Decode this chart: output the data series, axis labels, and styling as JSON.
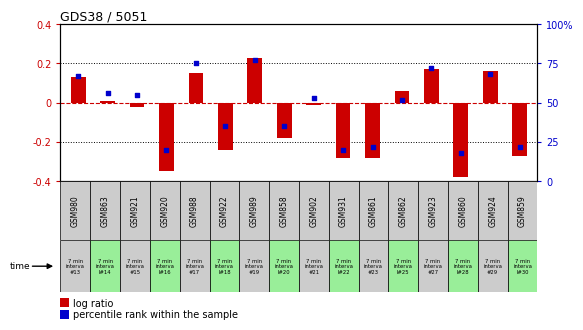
{
  "title": "GDS38 / 5051",
  "samples": [
    "GSM980",
    "GSM863",
    "GSM921",
    "GSM920",
    "GSM988",
    "GSM922",
    "GSM989",
    "GSM858",
    "GSM902",
    "GSM931",
    "GSM861",
    "GSM862",
    "GSM923",
    "GSM860",
    "GSM924",
    "GSM859"
  ],
  "time_labels": [
    "7 min\ninterva\n#13",
    "7 min\ninterva\nl#14",
    "7 min\ninterva\n#15",
    "7 min\ninterva\nl#16",
    "7 min\ninterva\n#17",
    "7 min\ninterva\nl#18",
    "7 min\ninterva\n#19",
    "7 min\ninterva\nl#20",
    "7 min\ninterva\n#21",
    "7 min\ninterva\nl#22",
    "7 min\ninterva\n#23",
    "7 min\ninterva\nl#25",
    "7 min\ninterva\n#27",
    "7 min\ninterva\nl#28",
    "7 min\ninterva\n#29",
    "7 min\ninterva\nl#30"
  ],
  "log_ratio": [
    0.13,
    0.01,
    -0.02,
    -0.35,
    0.15,
    -0.24,
    0.23,
    -0.18,
    -0.01,
    -0.28,
    -0.28,
    0.06,
    0.17,
    -0.38,
    0.16,
    -0.27
  ],
  "percentile": [
    0.67,
    0.56,
    0.55,
    0.2,
    0.75,
    0.35,
    0.77,
    0.35,
    0.53,
    0.2,
    0.22,
    0.52,
    0.72,
    0.18,
    0.68,
    0.22
  ],
  "bar_color": "#cc0000",
  "dot_color": "#0000cc",
  "ylim_left": [
    -0.4,
    0.4
  ],
  "ylim_right": [
    0.0,
    1.0
  ],
  "yticks_left": [
    -0.4,
    -0.2,
    0.0,
    0.2,
    0.4
  ],
  "yticks_right": [
    0.0,
    0.25,
    0.5,
    0.75,
    1.0
  ],
  "ytick_labels_right": [
    "0",
    "25",
    "50",
    "75",
    "100%"
  ],
  "ytick_labels_left": [
    "-0.4",
    "-0.2",
    "0",
    "0.2",
    "0.4"
  ],
  "grid_dotted": [
    -0.2,
    0.2
  ],
  "grid_red_dashed": 0.0,
  "plot_bg": "#ffffff",
  "table_bg_gray": "#cccccc",
  "table_bg_green": "#99ee99",
  "outer_bg": "#e8e8e8"
}
